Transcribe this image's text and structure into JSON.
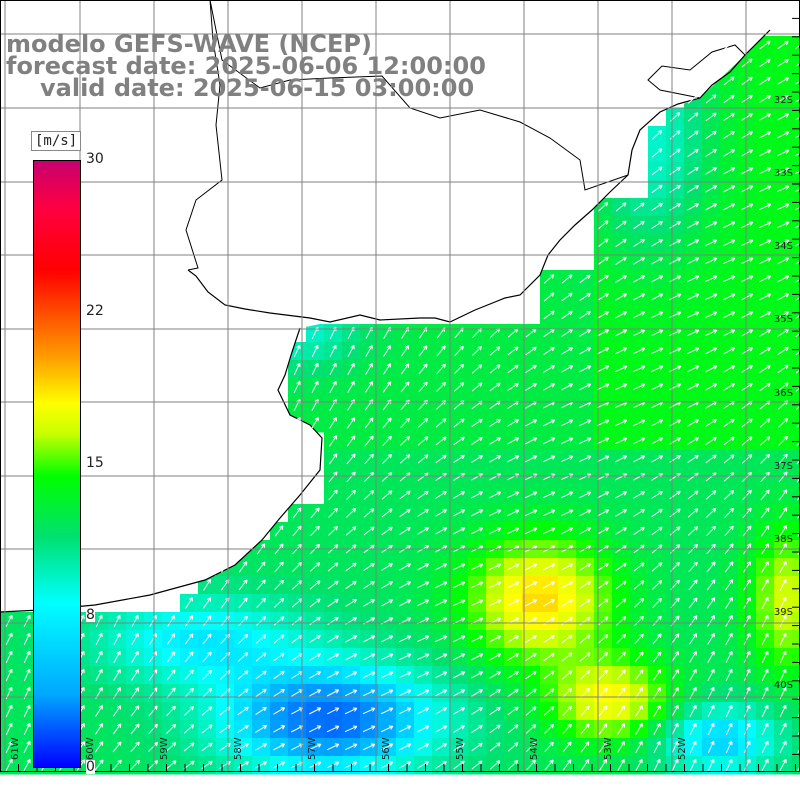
{
  "title": {
    "line1": "modelo GEFS-WAVE (NCEP)",
    "line2": "forecast date: 2025-06-06 12:00:00",
    "line3": "valid date: 2025-06-15 03:00:00"
  },
  "colorbar": {
    "unit": "[m/s]",
    "ticks": [
      "30",
      "22",
      "15",
      "8",
      "0"
    ],
    "colors": [
      "#0000ff",
      "#00a8ff",
      "#00ffff",
      "#00e070",
      "#00ff00",
      "#c8ff00",
      "#ffff00",
      "#ff9900",
      "#ff0000",
      "#c8006e"
    ]
  },
  "axes": {
    "lat_labels": [
      "32S",
      "33S",
      "34S",
      "35S",
      "36S",
      "37S",
      "38S",
      "39S",
      "40S"
    ],
    "lon_labels": [
      "61W",
      "60W",
      "59W",
      "58W",
      "57W",
      "56W",
      "55W",
      "54W",
      "53W",
      "52W"
    ]
  },
  "colors": {
    "land": "#ffffff",
    "coast": "#000000",
    "grid": "#808080",
    "arrow": "#ffffff"
  }
}
